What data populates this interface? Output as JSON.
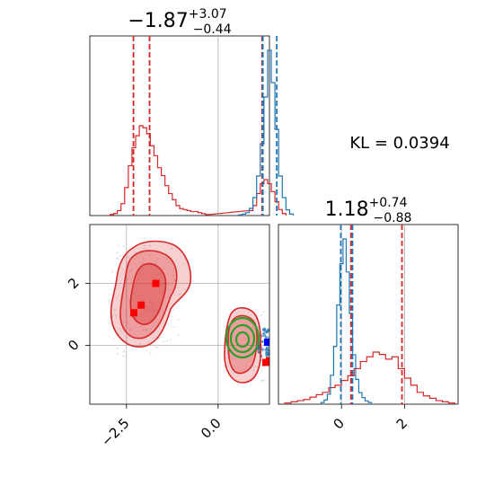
{
  "chart_data": {
    "type": "corner",
    "kl_text": "KL = 0.0394",
    "colors": {
      "red": "#d62728",
      "blue": "#1f77b4",
      "green": "#2ca02c",
      "grid": "#b0b0b0"
    },
    "param1": {
      "title_value": "−1.87",
      "title_plus": "+3.07",
      "title_minus": "−0.44",
      "range": [
        -3.5,
        1.4
      ],
      "ticks": [
        {
          "value": -2.5,
          "label": "−2.5"
        },
        {
          "value": 0.0,
          "label": "0.0"
        }
      ],
      "red_quantiles": [
        -2.31,
        -1.87,
        1.2
      ],
      "blue_quantiles": [
        1.22,
        1.6
      ],
      "red_hist": {
        "bins": [
          -2.9,
          -2.8,
          -2.7,
          -2.6,
          -2.5,
          -2.4,
          -2.3,
          -2.2,
          -2.1,
          -2.0,
          -1.9,
          -1.8,
          -1.7,
          -1.6,
          -1.5,
          -1.4,
          -1.3,
          -1.2,
          -1.1,
          -1.0,
          -0.9,
          -0.8,
          -0.7,
          -0.6,
          -0.5,
          -0.4,
          -0.3,
          0.9,
          1.0,
          1.1,
          1.2,
          1.3,
          1.4,
          1.5,
          1.6,
          1.7,
          1.8
        ],
        "counts": [
          1,
          2,
          5,
          12,
          28,
          50,
          68,
          80,
          90,
          88,
          82,
          70,
          60,
          48,
          40,
          30,
          22,
          16,
          10,
          7,
          6,
          5,
          4,
          4,
          3,
          2,
          1,
          5,
          10,
          22,
          32,
          36,
          32,
          24,
          14,
          6,
          2
        ]
      },
      "blue_hist": {
        "bins": [
          0.6,
          0.7,
          0.8,
          0.9,
          1.0,
          1.1,
          1.2,
          1.3,
          1.4,
          1.5,
          1.6,
          1.7,
          1.8,
          1.9,
          2.0
        ],
        "counts": [
          1,
          2,
          4,
          10,
          25,
          55,
          100,
          165,
          230,
          185,
          120,
          55,
          25,
          8,
          2
        ]
      }
    },
    "param2": {
      "title_value": "1.18",
      "title_plus": "+0.74",
      "title_minus": "−0.88",
      "range": [
        -2.0,
        3.7
      ],
      "ticks": [
        {
          "value": 0,
          "label": "0"
        },
        {
          "value": 2,
          "label": "2"
        }
      ],
      "red_quantiles": [
        0.3,
        1.92
      ],
      "blue_quantiles": [
        -0.02,
        0.35
      ],
      "red_hist": {
        "bins": [
          -1.7,
          -1.5,
          -1.3,
          -1.1,
          -0.9,
          -0.7,
          -0.5,
          -0.3,
          -0.1,
          0.1,
          0.3,
          0.5,
          0.7,
          0.9,
          1.1,
          1.3,
          1.5,
          1.7,
          1.9,
          2.1,
          2.3,
          2.5,
          2.7,
          2.9,
          3.1,
          3.3,
          3.5
        ],
        "counts": [
          1,
          2,
          3,
          4,
          6,
          8,
          10,
          14,
          16,
          20,
          24,
          30,
          36,
          40,
          44,
          42,
          38,
          40,
          30,
          22,
          16,
          10,
          7,
          5,
          3,
          2,
          1
        ]
      },
      "blue_hist": {
        "bins": [
          -0.6,
          -0.5,
          -0.4,
          -0.3,
          -0.2,
          -0.1,
          0.0,
          0.1,
          0.2,
          0.3,
          0.4,
          0.5,
          0.6,
          0.7,
          0.8,
          0.9
        ],
        "counts": [
          2,
          5,
          12,
          35,
          70,
          120,
          170,
          200,
          160,
          110,
          60,
          30,
          14,
          8,
          4,
          2
        ]
      }
    },
    "scatter": {
      "y_range": [
        -1.9,
        3.9
      ],
      "y_ticks": [
        {
          "value": 0,
          "label": "0"
        },
        {
          "value": 2,
          "label": "2"
        }
      ],
      "red_squares": [
        [
          -2.3,
          1.05
        ],
        [
          -2.1,
          1.3
        ],
        [
          -1.7,
          2.0
        ],
        [
          1.3,
          -0.55
        ],
        [
          1.4,
          -0.5
        ],
        [
          2.2,
          -0.52
        ]
      ],
      "blue_squares": [
        [
          1.35,
          0.1
        ]
      ]
    }
  }
}
